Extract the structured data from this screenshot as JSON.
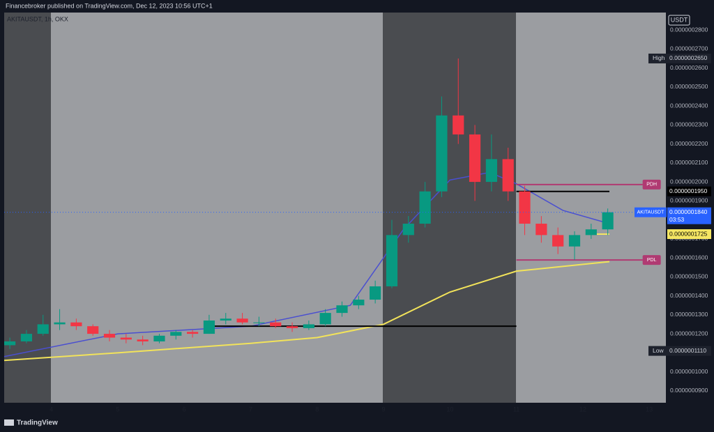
{
  "header": {
    "text": "Financebroker published on TradingView.com, Dec 12, 2023 10:56 UTC+1"
  },
  "footer": {
    "brand": "TradingView"
  },
  "chart_data": {
    "type": "candlestick",
    "symbol": "AKITAUSDT, 1h, OKX",
    "currency": "USDT",
    "up_color": "#089981",
    "down_color": "#f23645",
    "xlim": [
      3.29,
      13.25
    ],
    "xticks": [
      4,
      5,
      6,
      7,
      8,
      9,
      10,
      11,
      12,
      13
    ],
    "ylim": [
      8.37e-08,
      2.892e-07
    ],
    "yticks": [
      {
        "value": 2.8e-07,
        "label": "0.0000002800"
      },
      {
        "value": 2.7e-07,
        "label": "0.0000002700"
      },
      {
        "value": 2.6e-07,
        "label": "0.0000002600"
      },
      {
        "value": 2.5e-07,
        "label": "0.0000002500"
      },
      {
        "value": 2.4e-07,
        "label": "0.0000002400"
      },
      {
        "value": 2.3e-07,
        "label": "0.0000002300"
      },
      {
        "value": 2.2e-07,
        "label": "0.0000002200"
      },
      {
        "value": 2.1e-07,
        "label": "0.0000002100"
      },
      {
        "value": 2e-07,
        "label": "0.0000002000"
      },
      {
        "value": 1.9e-07,
        "label": "0.0000001900"
      },
      {
        "value": 1.8e-07,
        "label": "0.0000001800"
      },
      {
        "value": 1.7e-07,
        "label": "0.0000001700"
      },
      {
        "value": 1.6e-07,
        "label": "0.0000001600"
      },
      {
        "value": 1.5e-07,
        "label": "0.0000001500"
      },
      {
        "value": 1.4e-07,
        "label": "0.0000001400"
      },
      {
        "value": 1.3e-07,
        "label": "0.0000001300"
      },
      {
        "value": 1.2e-07,
        "label": "0.0000001200"
      },
      {
        "value": 1.1e-07,
        "label": "0.0000001100"
      },
      {
        "value": 1e-07,
        "label": "0.0000001000"
      },
      {
        "value": 9e-08,
        "label": "0.0000000900"
      }
    ],
    "x": [
      3.375,
      3.625,
      3.875,
      4.125,
      4.375,
      4.625,
      4.875,
      5.125,
      5.375,
      5.625,
      5.875,
      6.125,
      6.375,
      6.625,
      6.875,
      7.125,
      7.375,
      7.625,
      7.875,
      8.125,
      8.375,
      8.625,
      8.875,
      9.125,
      9.375,
      9.625,
      9.875,
      10.125,
      10.375,
      10.625,
      10.875,
      11.125,
      11.375,
      11.625,
      11.875,
      12.125,
      12.375
    ],
    "open": [
      1.14e-07,
      1.16e-07,
      1.2e-07,
      1.25e-07,
      1.26e-07,
      1.24e-07,
      1.2e-07,
      1.18e-07,
      1.17e-07,
      1.16e-07,
      1.19e-07,
      1.21e-07,
      1.2e-07,
      1.27e-07,
      1.28e-07,
      1.26e-07,
      1.26e-07,
      1.24e-07,
      1.23e-07,
      1.25e-07,
      1.31e-07,
      1.35e-07,
      1.38e-07,
      1.45e-07,
      1.72e-07,
      1.78e-07,
      1.95e-07,
      2.35e-07,
      2.25e-07,
      2e-07,
      2.12e-07,
      1.95e-07,
      1.78e-07,
      1.72e-07,
      1.66e-07,
      1.72e-07,
      1.75e-07
    ],
    "high": [
      1.18e-07,
      1.22e-07,
      1.3e-07,
      1.33e-07,
      1.28e-07,
      1.25e-07,
      1.22e-07,
      1.2e-07,
      1.19e-07,
      1.2e-07,
      1.22e-07,
      1.22e-07,
      1.3e-07,
      1.31e-07,
      1.31e-07,
      1.29e-07,
      1.28e-07,
      1.26e-07,
      1.27e-07,
      1.33e-07,
      1.37e-07,
      1.4e-07,
      1.48e-07,
      1.8e-07,
      1.82e-07,
      2e-07,
      2.45e-07,
      2.65e-07,
      2.3e-07,
      2.25e-07,
      2.18e-07,
      1.98e-07,
      1.82e-07,
      1.76e-07,
      1.74e-07,
      1.78e-07,
      1.86e-07
    ],
    "low": [
      1.12e-07,
      1.15e-07,
      1.19e-07,
      1.22e-07,
      1.22e-07,
      1.19e-07,
      1.16e-07,
      1.15e-07,
      1.14e-07,
      1.15e-07,
      1.17e-07,
      1.18e-07,
      1.2e-07,
      1.25e-07,
      1.25e-07,
      1.24e-07,
      1.23e-07,
      1.21e-07,
      1.22e-07,
      1.24e-07,
      1.29e-07,
      1.33e-07,
      1.36e-07,
      1.44e-07,
      1.68e-07,
      1.76e-07,
      1.92e-07,
      2.2e-07,
      1.9e-07,
      1.95e-07,
      1.9e-07,
      1.72e-07,
      1.68e-07,
      1.62e-07,
      1.59e-07,
      1.7e-07,
      1.72e-07
    ],
    "close": [
      1.16e-07,
      1.2e-07,
      1.25e-07,
      1.26e-07,
      1.24e-07,
      1.2e-07,
      1.18e-07,
      1.17e-07,
      1.16e-07,
      1.19e-07,
      1.21e-07,
      1.2e-07,
      1.27e-07,
      1.28e-07,
      1.26e-07,
      1.26e-07,
      1.24e-07,
      1.23e-07,
      1.25e-07,
      1.31e-07,
      1.35e-07,
      1.38e-07,
      1.45e-07,
      1.72e-07,
      1.78e-07,
      1.95e-07,
      2.35e-07,
      2.25e-07,
      2e-07,
      2.12e-07,
      1.95e-07,
      1.78e-07,
      1.72e-07,
      1.66e-07,
      1.72e-07,
      1.75e-07,
      1.84e-07
    ],
    "series": [
      {
        "color": "#f2e35a",
        "x": [
          3.29,
          5,
          7,
          8,
          9,
          10,
          11,
          12.4
        ],
        "values": [
          1.06e-07,
          1.1e-07,
          1.15e-07,
          1.18e-07,
          1.25e-07,
          1.42e-07,
          1.53e-07,
          1.58e-07
        ]
      },
      {
        "color": "#4a4fd0",
        "x": [
          3.29,
          5,
          7,
          8.5,
          9.3,
          10,
          10.6,
          11,
          11.7,
          12.4
        ],
        "values": [
          1.08e-07,
          1.2e-07,
          1.24e-07,
          1.35e-07,
          1.75e-07,
          2.01e-07,
          2.05e-07,
          1.99e-07,
          1.85e-07,
          1.78e-07
        ]
      }
    ],
    "levels": [
      {
        "value": 1.95e-07,
        "value_label": "0.0000001950",
        "color": "#000000",
        "x": [
          11,
          12.4
        ]
      },
      {
        "value": 1.725e-07,
        "value_label": "0.0000001725",
        "color": "#f5e663",
        "x": [
          12.1,
          12.4
        ]
      },
      {
        "value": 1.24e-07,
        "color": "#000000",
        "x": [
          6.3,
          11
        ]
      },
      {
        "value": 1.986e-07,
        "label": "PDH",
        "color": "#b03a72",
        "x": [
          11,
          12.9
        ]
      },
      {
        "value": 1.589e-07,
        "label": "PDL",
        "color": "#b03a72",
        "x": [
          11,
          12.9
        ]
      }
    ],
    "markers": [
      {
        "title": "High",
        "value": 2.65e-07,
        "value_label": "0.0000002650"
      },
      {
        "title": "Low",
        "value": 1.11e-07,
        "value_label": "0.0000001110"
      }
    ],
    "last_price": {
      "symbol": "AKITAUSDT",
      "value": 1.84e-07,
      "value_label": "0.0000001840",
      "countdown": "03:53"
    }
  }
}
